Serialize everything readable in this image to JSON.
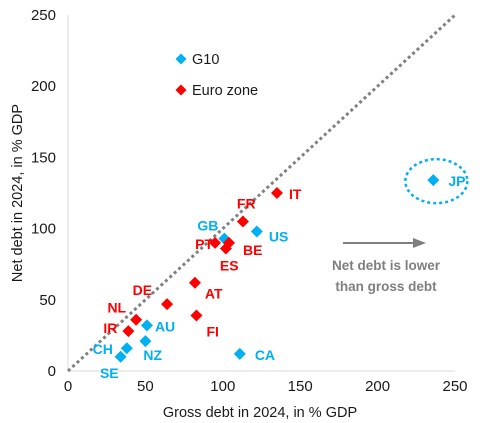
{
  "chart_data": {
    "type": "scatter",
    "xlabel": "Gross debt in 2024, in % GDP",
    "ylabel": "Net debt in 2024, in % GDP",
    "xlim": [
      0,
      250
    ],
    "ylim": [
      0,
      250
    ],
    "x_ticks": [
      0,
      50,
      100,
      150,
      200,
      250
    ],
    "y_ticks": [
      0,
      50,
      100,
      150,
      200,
      250
    ],
    "grid": false,
    "reference_line": {
      "style": "dotted",
      "color": "#808080",
      "from": [
        0,
        0
      ],
      "to": [
        250,
        250
      ]
    },
    "legend_position": "top-left",
    "series": [
      {
        "name": "G10",
        "color": "#00b0f0",
        "marker": "diamond",
        "points": [
          {
            "label": "JP",
            "x": 236,
            "y": 134
          },
          {
            "label": "US",
            "x": 122,
            "y": 98
          },
          {
            "label": "GB",
            "x": 101,
            "y": 93
          },
          {
            "label": "CA",
            "x": 111,
            "y": 12
          },
          {
            "label": "AU",
            "x": 51,
            "y": 32
          },
          {
            "label": "NZ",
            "x": 50,
            "y": 21
          },
          {
            "label": "CH",
            "x": 38,
            "y": 16
          },
          {
            "label": "SE",
            "x": 34,
            "y": 10
          }
        ]
      },
      {
        "name": "Euro zone",
        "color": "#ff0000",
        "marker": "diamond",
        "points": [
          {
            "label": "IT",
            "x": 135,
            "y": 125
          },
          {
            "label": "FR",
            "x": 113,
            "y": 105
          },
          {
            "label": "PT",
            "x": 95,
            "y": 90
          },
          {
            "label": "BE",
            "x": 104,
            "y": 90
          },
          {
            "label": "ES",
            "x": 102,
            "y": 86
          },
          {
            "label": "DE",
            "x": 64,
            "y": 47
          },
          {
            "label": "NL",
            "x": 44,
            "y": 36
          },
          {
            "label": "IR",
            "x": 39,
            "y": 28
          },
          {
            "label": "AT",
            "x": 82,
            "y": 62
          },
          {
            "label": "FI",
            "x": 83,
            "y": 39
          }
        ]
      }
    ],
    "annotation": {
      "lines": [
        "Net debt is lower",
        "than gross debt"
      ],
      "color": "#7f7f7f"
    }
  }
}
